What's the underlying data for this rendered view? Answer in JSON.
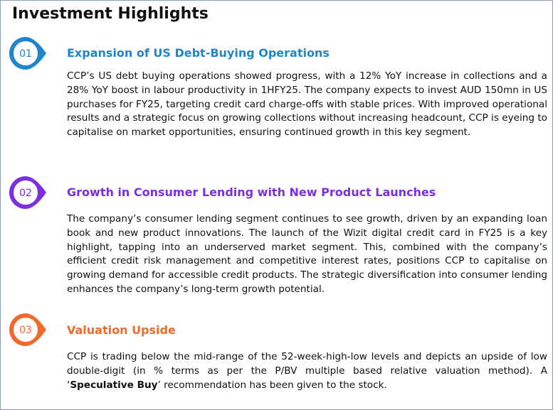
{
  "title": "Investment Highlights",
  "sections": [
    {
      "number": "01",
      "heading": "Expansion of US Debt-Buying Operations",
      "body": [
        "CCP’s US debt buying operations showed progress, with a 12% YoY increase in collections and a 28% YoY boost in labour productivity in 1HFY25. The company expects to invest AUD 150mn in US purchases for FY25, targeting credit card charge-offs with stable prices. With improved operational results and a strategic focus on growing collections without increasing headcount, CCP is eyeing to capitalise on market opportunities, ensuring continued growth in this key segment."
      ]
    },
    {
      "number": "02",
      "heading": "Growth in Consumer Lending with New Product Launches",
      "body": [
        "The company’s consumer lending segment continues to see growth, driven by an expanding loan book and new product innovations. The launch of the Wizit digital credit card in FY25 is a key highlight, tapping into an underserved market segment. This, combined with the company’s efficient credit risk management and competitive interest rates, positions CCP to capitalise on growing demand for accessible credit products. The strategic diversification into consumer lending enhances the company’s long-term growth potential."
      ]
    },
    {
      "number": "03",
      "heading": "Valuation Upside",
      "body": [
        "CCP is trading below the mid-range of the 52-week-high-low levels and depicts an upside of low double-digit (in % terms as per the P/BV multiple based relative valuation method). A ‘",
        "Speculative Buy",
        "’ recommendation has been given to the stock."
      ]
    }
  ]
}
